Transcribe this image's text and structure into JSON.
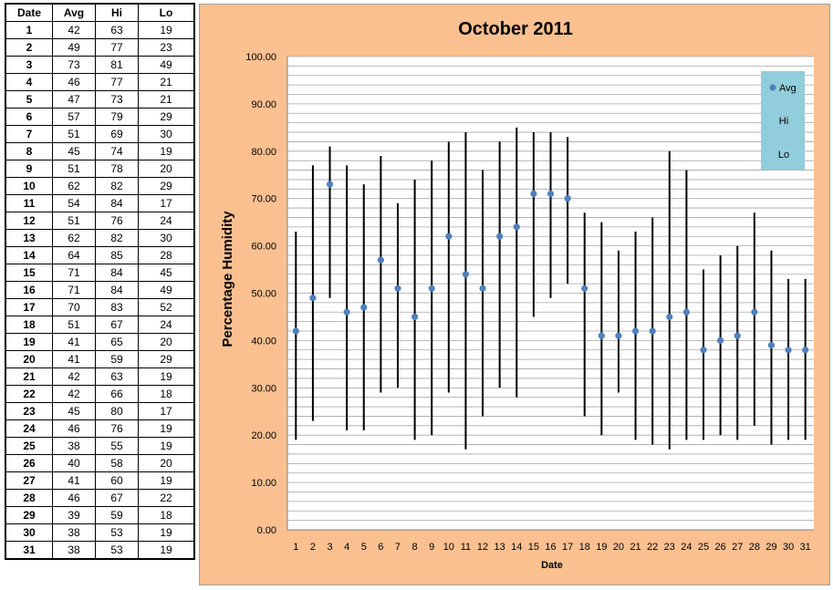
{
  "table": {
    "headers": [
      "Date",
      "Avg",
      "Hi",
      "Lo"
    ],
    "rows": [
      [
        1,
        42,
        63,
        19
      ],
      [
        2,
        49,
        77,
        23
      ],
      [
        3,
        73,
        81,
        49
      ],
      [
        4,
        46,
        77,
        21
      ],
      [
        5,
        47,
        73,
        21
      ],
      [
        6,
        57,
        79,
        29
      ],
      [
        7,
        51,
        69,
        30
      ],
      [
        8,
        45,
        74,
        19
      ],
      [
        9,
        51,
        78,
        20
      ],
      [
        10,
        62,
        82,
        29
      ],
      [
        11,
        54,
        84,
        17
      ],
      [
        12,
        51,
        76,
        24
      ],
      [
        13,
        62,
        82,
        30
      ],
      [
        14,
        64,
        85,
        28
      ],
      [
        15,
        71,
        84,
        45
      ],
      [
        16,
        71,
        84,
        49
      ],
      [
        17,
        70,
        83,
        52
      ],
      [
        18,
        51,
        67,
        24
      ],
      [
        19,
        41,
        65,
        20
      ],
      [
        20,
        41,
        59,
        29
      ],
      [
        21,
        42,
        63,
        19
      ],
      [
        22,
        42,
        66,
        18
      ],
      [
        23,
        45,
        80,
        17
      ],
      [
        24,
        46,
        76,
        19
      ],
      [
        25,
        38,
        55,
        19
      ],
      [
        26,
        40,
        58,
        20
      ],
      [
        27,
        41,
        60,
        19
      ],
      [
        28,
        46,
        67,
        22
      ],
      [
        29,
        39,
        59,
        18
      ],
      [
        30,
        38,
        53,
        19
      ],
      [
        31,
        38,
        53,
        19
      ]
    ]
  },
  "colors": {
    "panel_background": "#fac090",
    "plot_background": "#ffffff",
    "gridline": "#a6a6a6",
    "avg_marker": "#4f81bd",
    "hi_lo_line": "#000000",
    "legend_background": "#92cddc"
  },
  "chart_data": {
    "type": "line",
    "title": "October 2011",
    "xlabel": "Date",
    "ylabel": "Percentage Humidity",
    "x": [
      1,
      2,
      3,
      4,
      5,
      6,
      7,
      8,
      9,
      10,
      11,
      12,
      13,
      14,
      15,
      16,
      17,
      18,
      19,
      20,
      21,
      22,
      23,
      24,
      25,
      26,
      27,
      28,
      29,
      30,
      31
    ],
    "series": [
      {
        "name": "Avg",
        "values": [
          42,
          49,
          73,
          46,
          47,
          57,
          51,
          45,
          51,
          62,
          54,
          51,
          62,
          64,
          71,
          71,
          70,
          51,
          41,
          41,
          42,
          42,
          45,
          46,
          38,
          40,
          41,
          46,
          39,
          38,
          38
        ]
      },
      {
        "name": "Hi",
        "values": [
          63,
          77,
          81,
          77,
          73,
          79,
          69,
          74,
          78,
          82,
          84,
          76,
          82,
          85,
          84,
          84,
          83,
          67,
          65,
          59,
          63,
          66,
          80,
          76,
          55,
          58,
          60,
          67,
          59,
          53,
          53
        ]
      },
      {
        "name": "Lo",
        "values": [
          19,
          23,
          49,
          21,
          21,
          29,
          30,
          19,
          20,
          29,
          17,
          24,
          30,
          28,
          45,
          49,
          52,
          24,
          20,
          29,
          19,
          18,
          17,
          19,
          19,
          20,
          19,
          22,
          18,
          19,
          19
        ]
      }
    ],
    "ylim": [
      0,
      100
    ],
    "yticks": [
      "0.00",
      "10.00",
      "20.00",
      "30.00",
      "40.00",
      "50.00",
      "60.00",
      "70.00",
      "80.00",
      "90.00",
      "100.00"
    ],
    "minor_grid_step": 2,
    "grid": true,
    "legend_position": "top-right"
  }
}
